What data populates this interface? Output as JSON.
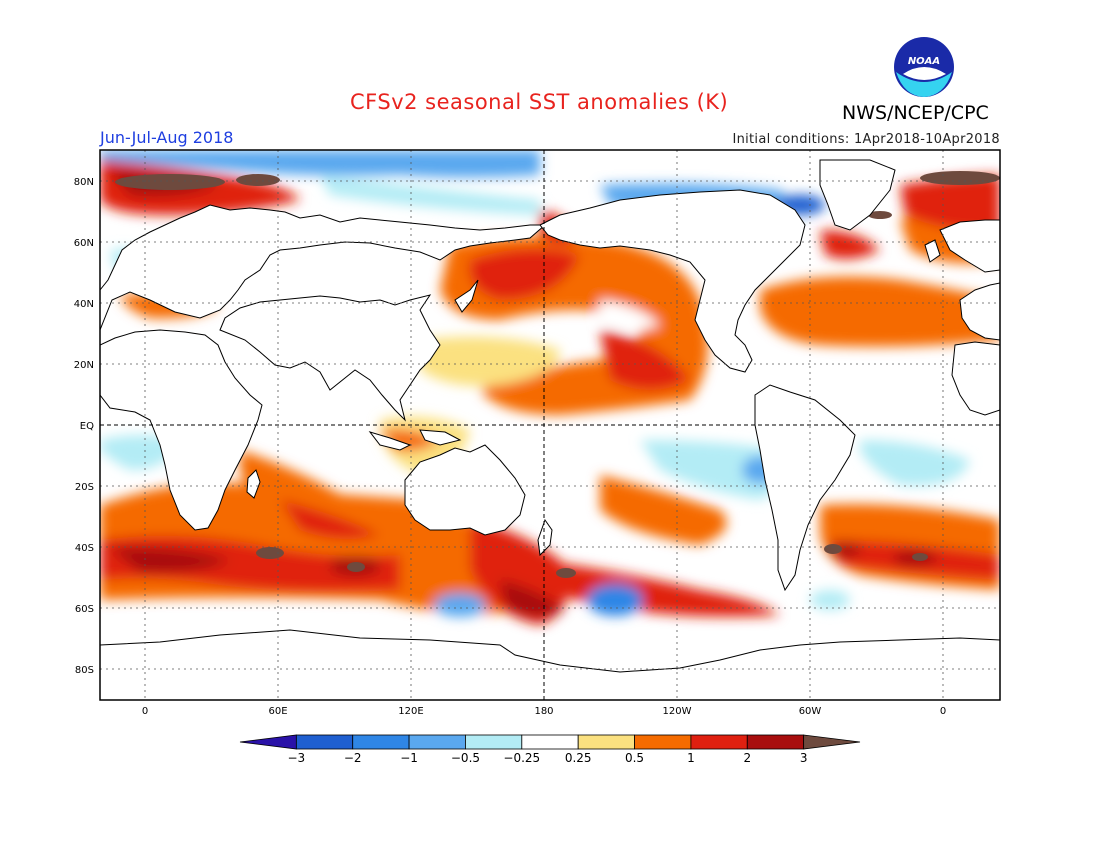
{
  "title": "CFSv2 seasonal SST anomalies (K)",
  "agency": "NWS/NCEP/CPC",
  "logo_text": "NOAA",
  "season": "Jun-Jul-Aug 2018",
  "initial_conditions": "Initial conditions: 1Apr2018-10Apr2018",
  "lat_labels": [
    "80N",
    "60N",
    "40N",
    "20N",
    "EQ",
    "20S",
    "40S",
    "60S",
    "80S"
  ],
  "lon_labels": [
    "0",
    "60E",
    "120E",
    "180",
    "120W",
    "60W",
    "0"
  ],
  "colorbar": {
    "labels": [
      "-3",
      "-2",
      "-1",
      "-0.5",
      "-0.25",
      "0.25",
      "0.5",
      "1",
      "2",
      "3"
    ],
    "colors": [
      "#2a12a8",
      "#1f5fd0",
      "#2f86e6",
      "#5aa8ef",
      "#b3ecf5",
      "#ffffff",
      "#fbe180",
      "#f56b00",
      "#e02010",
      "#a80e0e",
      "#6e4a3e"
    ]
  }
}
